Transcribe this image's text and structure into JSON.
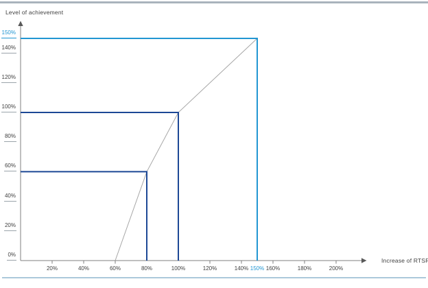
{
  "colors": {
    "accent_cyan": "#2196d2",
    "accent_navy": "#1c4795",
    "curve_gray": "#a6a6a6",
    "axis_gray": "#7f7f7f",
    "axis_arrow": "#595959",
    "text_dark": "#404040",
    "top_bar": "#a9b3bc",
    "bottom_bar": "#abc8db"
  },
  "chart_data": {
    "type": "line",
    "title": "",
    "xlabel": "Increase of RTSR",
    "ylabel": "Level of achievement",
    "xlim": [
      0,
      219
    ],
    "ylim": [
      0,
      161
    ],
    "grid": false,
    "legend": "none",
    "x_ticks": [
      {
        "value": 20,
        "label": "20%"
      },
      {
        "value": 40,
        "label": "40%"
      },
      {
        "value": 60,
        "label": "60%"
      },
      {
        "value": 80,
        "label": "80%"
      },
      {
        "value": 100,
        "label": "100%"
      },
      {
        "value": 120,
        "label": "120%"
      },
      {
        "value": 140,
        "label": "140%"
      },
      {
        "value": 150,
        "label": "150%",
        "highlight": true
      },
      {
        "value": 160,
        "label": "160%"
      },
      {
        "value": 180,
        "label": "180%"
      },
      {
        "value": 200,
        "label": "200%"
      }
    ],
    "x_tick_marks": [
      20,
      40,
      60,
      120,
      140,
      160,
      180,
      200
    ],
    "y_ticks": [
      {
        "value": 0,
        "label": "0%"
      },
      {
        "value": 20,
        "label": "20%"
      },
      {
        "value": 40,
        "label": "40%"
      },
      {
        "value": 60,
        "label": "60%"
      },
      {
        "value": 80,
        "label": "80%"
      },
      {
        "value": 100,
        "label": "100%"
      },
      {
        "value": 120,
        "label": "120%"
      },
      {
        "value": 140,
        "label": "140%"
      },
      {
        "value": 150,
        "label": "150%",
        "highlight": true
      }
    ],
    "series": [
      {
        "name": "payout-curve",
        "color_key": "curve_gray",
        "width": 1,
        "points": [
          [
            60,
            0
          ],
          [
            80,
            60
          ],
          [
            100,
            100
          ],
          [
            150,
            150
          ]
        ]
      },
      {
        "name": "threshold-guide-60",
        "color_key": "accent_navy",
        "width": 2,
        "points": [
          [
            0,
            60
          ],
          [
            80,
            60
          ],
          [
            80,
            0
          ]
        ]
      },
      {
        "name": "target-guide-100",
        "color_key": "accent_navy",
        "width": 2,
        "points": [
          [
            0,
            100
          ],
          [
            100,
            100
          ],
          [
            100,
            0
          ]
        ]
      },
      {
        "name": "cap-guide-150",
        "color_key": "accent_cyan",
        "width": 2,
        "points": [
          [
            0,
            150
          ],
          [
            150,
            150
          ],
          [
            150,
            0
          ]
        ]
      }
    ]
  }
}
